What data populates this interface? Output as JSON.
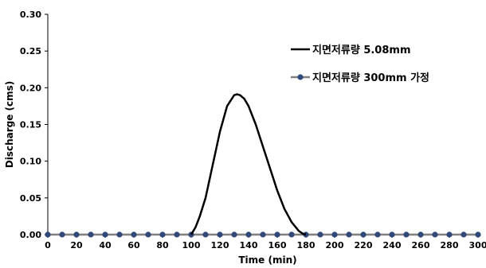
{
  "chart_data": {
    "type": "line",
    "xlabel": "Time (min)",
    "ylabel": "Discharge (cms)",
    "xlim": [
      0,
      300
    ],
    "ylim": [
      0,
      0.3
    ],
    "x_ticks": [
      0,
      20,
      40,
      60,
      80,
      100,
      120,
      140,
      160,
      180,
      200,
      220,
      240,
      260,
      280,
      300
    ],
    "y_ticks": [
      0.0,
      0.05,
      0.1,
      0.15,
      0.2,
      0.25,
      0.3
    ],
    "y_tick_labels": [
      "0.00",
      "0.05",
      "0.10",
      "0.15",
      "0.20",
      "0.25",
      "0.30"
    ],
    "grid": false,
    "legend_position": "top-right",
    "series": [
      {
        "name": "지면저류량 5.08mm",
        "color": "#000000",
        "marker": "none",
        "x": [
          100,
          103,
          106,
          110,
          115,
          120,
          125,
          130,
          132,
          134,
          137,
          140,
          145,
          150,
          155,
          160,
          165,
          170,
          175,
          178,
          180
        ],
        "y": [
          0.0,
          0.01,
          0.025,
          0.05,
          0.095,
          0.14,
          0.175,
          0.19,
          0.191,
          0.19,
          0.185,
          0.175,
          0.15,
          0.12,
          0.09,
          0.06,
          0.035,
          0.017,
          0.005,
          0.001,
          0.0
        ]
      },
      {
        "name": "지면저류량 300mm 가정",
        "color": "#7f7f7f",
        "marker": "circle",
        "marker_color": "#2f4a7a",
        "x": [
          0,
          10,
          20,
          30,
          40,
          50,
          60,
          70,
          80,
          90,
          100,
          110,
          120,
          130,
          140,
          150,
          160,
          170,
          180,
          190,
          200,
          210,
          220,
          230,
          240,
          250,
          260,
          270,
          280,
          290,
          300
        ],
        "y": [
          0,
          0,
          0,
          0,
          0,
          0,
          0,
          0,
          0,
          0,
          0,
          0,
          0,
          0,
          0,
          0,
          0,
          0,
          0,
          0,
          0,
          0,
          0,
          0,
          0,
          0,
          0,
          0,
          0,
          0,
          0
        ]
      }
    ]
  }
}
